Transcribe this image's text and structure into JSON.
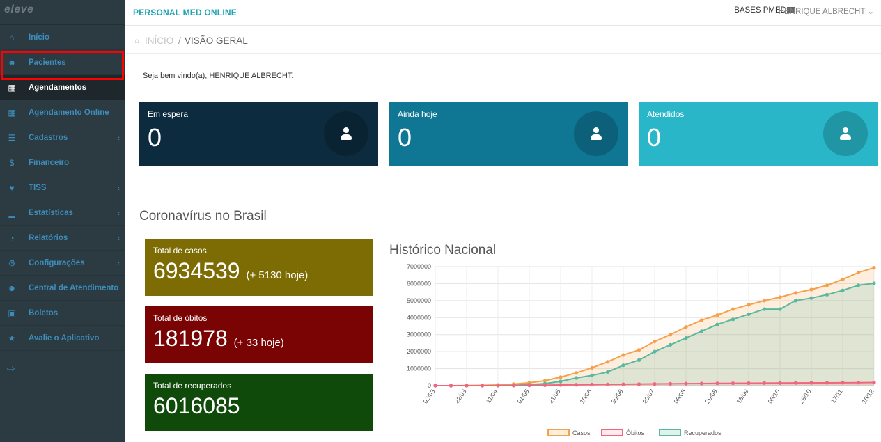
{
  "sidebar": {
    "brand": "eleve",
    "items": [
      {
        "label": "Início",
        "icon": "home-icon",
        "active": false,
        "chevron": false
      },
      {
        "label": "Pacientes",
        "icon": "users-icon",
        "active": false,
        "chevron": false
      },
      {
        "label": "Agendamentos",
        "icon": "calendar-icon",
        "active": true,
        "chevron": false
      },
      {
        "label": "Agendamento Online",
        "icon": "calendar-icon",
        "active": false,
        "chevron": false
      },
      {
        "label": "Cadastros",
        "icon": "list-icon",
        "active": false,
        "chevron": true
      },
      {
        "label": "Financeiro",
        "icon": "dollar-icon",
        "active": false,
        "chevron": false
      },
      {
        "label": "TISS",
        "icon": "heartbeat-icon",
        "active": false,
        "chevron": true
      },
      {
        "label": "Estatísticas",
        "icon": "bar-chart-icon",
        "active": false,
        "chevron": true
      },
      {
        "label": "Relatórios",
        "icon": "pie-chart-icon",
        "active": false,
        "chevron": true
      },
      {
        "label": "Configurações",
        "icon": "gear-icon",
        "active": false,
        "chevron": true
      },
      {
        "label": "Central de Atendimento",
        "icon": "users-icon",
        "active": false,
        "chevron": false
      },
      {
        "label": "Boletos",
        "icon": "money-icon",
        "active": false,
        "chevron": false
      },
      {
        "label": "Avalie o Aplicativo",
        "icon": "star-icon",
        "active": false,
        "chevron": false
      }
    ]
  },
  "topbar": {
    "title": "PERSONAL MED ONLINE",
    "bases": "BASES PMED",
    "user": "HENRIQUE ALBRECHT"
  },
  "breadcrumb": {
    "home": "INÍCIO",
    "separator": "/",
    "current": "VISÃO GERAL"
  },
  "welcome": "Seja bem vindo(a), HENRIQUE ALBRECHT.",
  "stats": [
    {
      "label": "Em espera",
      "value": "0",
      "color": "#0d2b3e"
    },
    {
      "label": "Ainda hoje",
      "value": "0",
      "color": "#0f7694"
    },
    {
      "label": "Atendidos",
      "value": "0",
      "color": "#28b6c8"
    }
  ],
  "covid": {
    "section_title": "Coronavírus no Brasil",
    "boxes": [
      {
        "label": "Total de casos",
        "value": "6934539",
        "delta": "(+ 5130 hoje)",
        "color": "#7d6c04"
      },
      {
        "label": "Total de óbitos",
        "value": "181978",
        "delta": "(+ 33 hoje)",
        "color": "#7a0404"
      },
      {
        "label": "Total de recuperados",
        "value": "6016085",
        "delta": "",
        "color": "#0f4a0a"
      }
    ]
  },
  "chart_data": {
    "type": "line",
    "title": "Histórico Nacional",
    "x_ticks": [
      "02/03",
      "22/03",
      "11/04",
      "01/05",
      "21/05",
      "10/06",
      "30/06",
      "20/07",
      "09/08",
      "29/08",
      "18/09",
      "08/10",
      "28/10",
      "17/11",
      "15/12"
    ],
    "y_ticks": [
      0,
      1000000,
      2000000,
      3000000,
      4000000,
      5000000,
      6000000,
      7000000
    ],
    "ylim": [
      0,
      7000000
    ],
    "grid": true,
    "legend_position": "bottom",
    "series": [
      {
        "name": "Casos",
        "color": "#f5a04a",
        "fill": "rgba(245,160,74,0.18)",
        "values": [
          0,
          0,
          10000,
          20000,
          40000,
          90000,
          170000,
          290000,
          500000,
          750000,
          1050000,
          1400000,
          1800000,
          2100000,
          2600000,
          3000000,
          3450000,
          3850000,
          4150000,
          4500000,
          4750000,
          5000000,
          5200000,
          5450000,
          5650000,
          5900000,
          6250000,
          6650000,
          6934539
        ]
      },
      {
        "name": "Óbitos",
        "color": "#f2657f",
        "fill": "rgba(242,101,127,0.12)",
        "values": [
          0,
          0,
          0,
          0,
          2000,
          6000,
          13000,
          25000,
          40000,
          50000,
          60000,
          70000,
          80000,
          90000,
          100000,
          110000,
          120000,
          125000,
          135000,
          140000,
          145000,
          150000,
          155000,
          160000,
          162000,
          165000,
          170000,
          176000,
          181978
        ]
      },
      {
        "name": "Recuperados",
        "color": "#5ab8a0",
        "fill": "rgba(90,184,160,0.18)",
        "values": [
          0,
          0,
          0,
          0,
          5000,
          20000,
          60000,
          120000,
          250000,
          450000,
          600000,
          800000,
          1200000,
          1500000,
          2000000,
          2400000,
          2800000,
          3200000,
          3600000,
          3900000,
          4200000,
          4500000,
          4500000,
          5000000,
          5150000,
          5350000,
          5600000,
          5900000,
          6016085
        ]
      }
    ]
  }
}
